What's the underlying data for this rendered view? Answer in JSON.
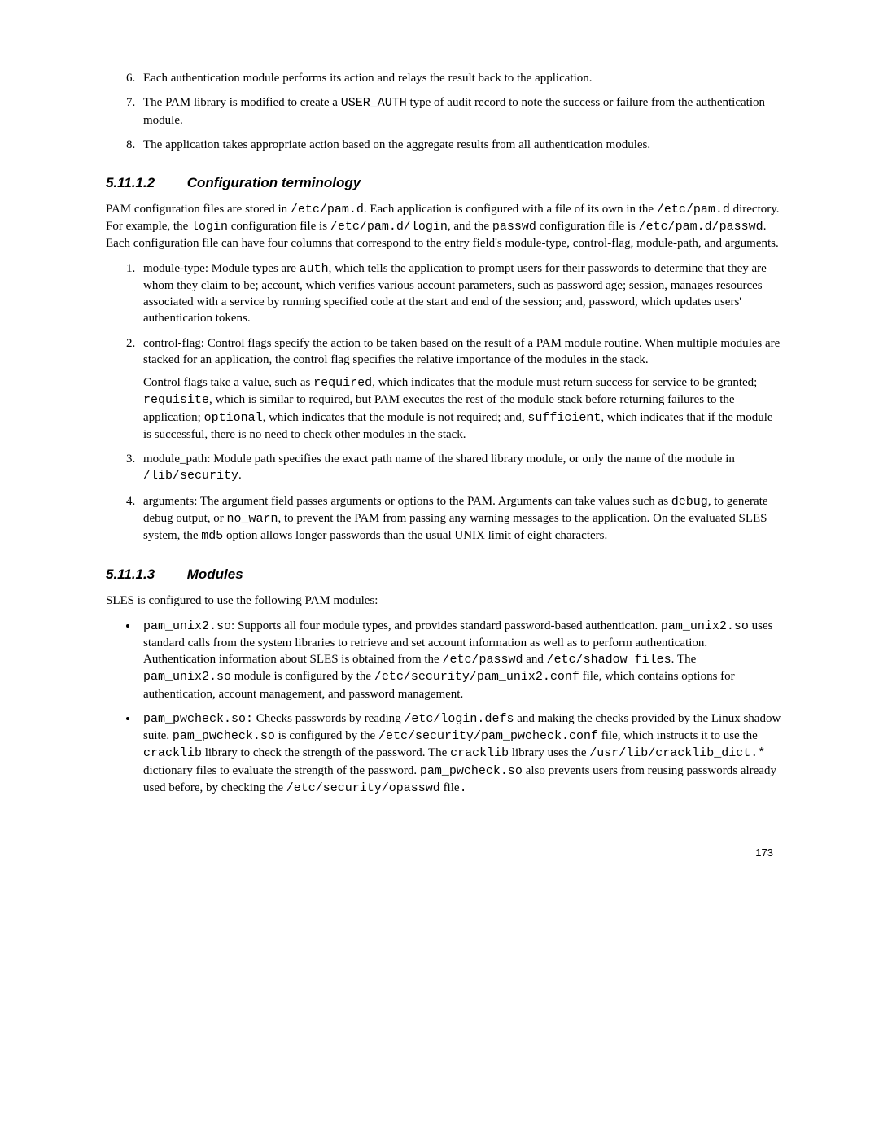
{
  "top_list": {
    "start": 6,
    "items": [
      "Each authentication module performs its action and relays the result back to the application.",
      "The PAM library is modified to create a <span class=\"mono\">USER_AUTH</span> type of audit record to note the success or failure from the authentication module.",
      "The application takes appropriate action based on the aggregate results from all authentication modules."
    ]
  },
  "section1": {
    "number": "5.11.1.2",
    "title": "Configuration terminology",
    "intro": "PAM configuration files are stored in <span class=\"mono\">/etc/pam.d</span>.  Each application is configured with a file of its own in the <span class=\"mono\">/etc/pam.d</span> directory.  For example, the <span class=\"mono\">login</span> configuration file is <span class=\"mono\">/etc/pam.d/login</span>, and the <span class=\"mono\">passwd</span> configuration file is <span class=\"mono\">/etc/pam.d/passwd</span>.  Each configuration file can have four columns that correspond to the entry field's module-type, control-flag, module-path, and arguments.",
    "items": [
      "module-type:  Module types are <span class=\"mono\">auth</span>, which tells the application to prompt users for their passwords to determine that they are whom they claim to be; account, which verifies various account parameters, such as password age; session, manages resources associated with a service by running specified code at the start and end of the session; and, password, which updates users' authentication tokens.",
      "control-flag: Control flags specify the action to be taken based on the result of a PAM module routine.  When multiple modules are stacked for an application, the control flag specifies the relative importance of the modules in the stack.<p class=\"li-para\">Control flags take a value, such as <span class=\"mono\">required</span>, which indicates that the module must return success for service to be granted; <span class=\"mono\">requisite</span>, which is similar to required, but PAM executes the rest of the module stack before returning failures to the application; <span class=\"mono\">optional</span>, which indicates that the module is not required; and, <span class=\"mono\">sufficient</span>, which indicates that if the module is successful, there is no need to check other modules in the stack.</p>",
      "module_path:  Module path specifies the exact path name of the shared library module, or only the name of the module in <span class=\"mono\">/lib/security</span>.",
      "arguments:  The argument field passes arguments or options to the PAM.  Arguments can take values such as <span class=\"mono\">debug</span>, to generate debug output, or <span class=\"mono\">no_warn</span>, to prevent the PAM from passing any warning messages to the application.  On the evaluated SLES system, the <span class=\"mono\">md5</span> option allows longer passwords than the usual UNIX limit of eight characters."
    ]
  },
  "section2": {
    "number": "5.11.1.3",
    "title": "Modules",
    "intro": "SLES is configured to use the following PAM modules:",
    "items": [
      "<span class=\"mono\">pam_unix2.so</span>:  Supports all four module types, and provides standard password-based authentication.  <span class=\"mono\">pam_unix2.so</span> uses standard calls from the system libraries to retrieve and set account information as well as to perform authentication.  Authentication information about SLES is obtained from the <span class=\"mono\">/etc/passwd</span> and <span class=\"mono\">/etc/shadow files</span>.  The <span class=\"mono\">pam_unix2.so</span> module is configured by the <span class=\"mono\">/etc/security/pam_unix2.conf</span> file, which contains options for authentication, account management, and password management.",
      "<span class=\"mono\">pam_pwcheck.so:</span>  Checks passwords by reading  <span class=\"mono\">/etc/login.defs</span> and making the checks provided by the Linux shadow suite. <span class=\"mono\">pam_pwcheck.so</span> is configured by the <span class=\"mono\"> /etc/security/pam_pwcheck.conf</span> file, which instructs it to use the <span class=\"mono\"> cracklib</span> library to check the strength of the password. The <span class=\"mono\">cracklib</span> library uses the <span class=\"mono\"> /usr/lib/cracklib_dict.*</span> dictionary files to evaluate the strength of the password. <span class=\"mono\">pam_pwcheck.so</span> also prevents users from reusing passwords already used before, by checking the <span class=\"mono\">/etc/security/opasswd</span>  file<span class=\"mono\">.</span>"
    ]
  },
  "page_number": "173"
}
